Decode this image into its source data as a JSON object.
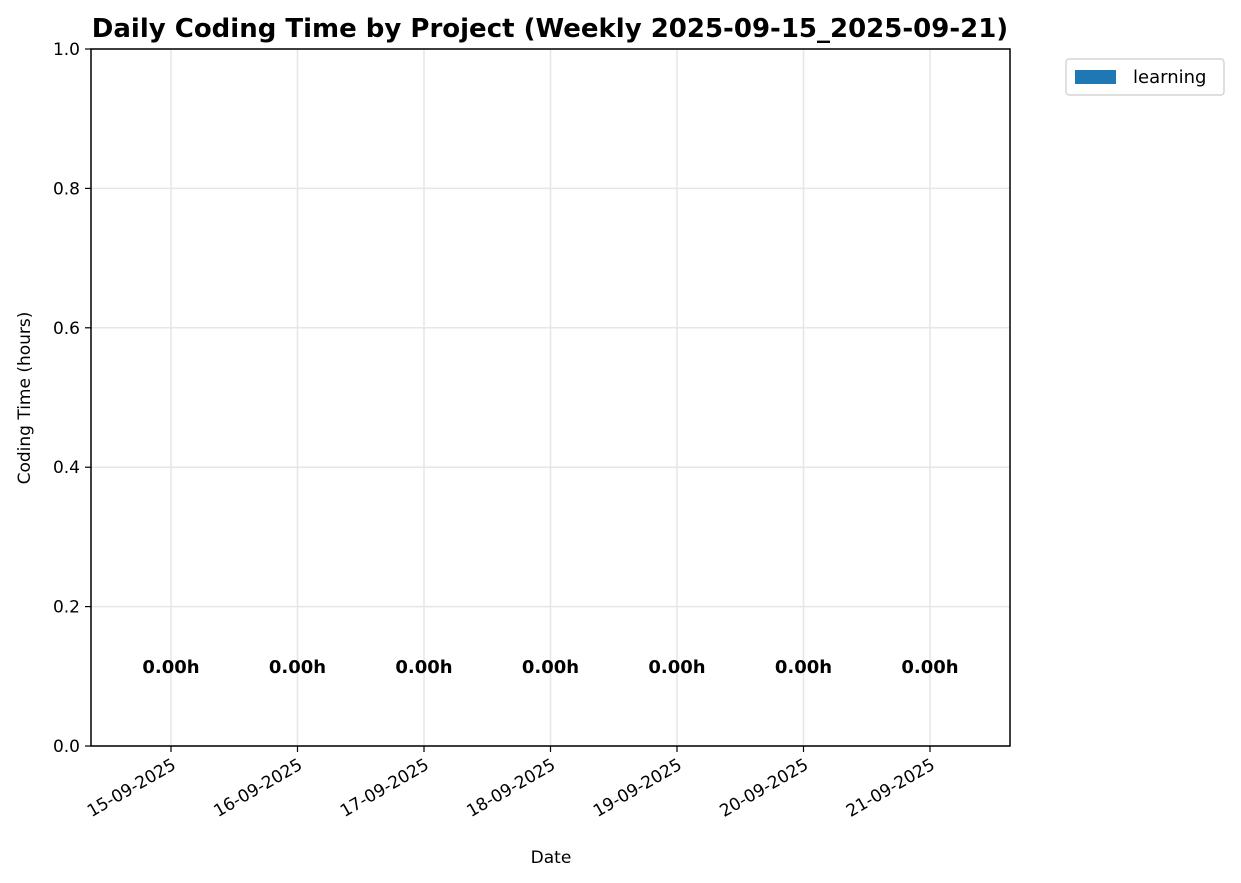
{
  "chart_data": {
    "type": "bar",
    "title": "Daily Coding Time by Project (Weekly 2025-09-15_2025-09-21)",
    "xlabel": "Date",
    "ylabel": "Coding Time (hours)",
    "categories": [
      "15-09-2025",
      "16-09-2025",
      "17-09-2025",
      "18-09-2025",
      "19-09-2025",
      "20-09-2025",
      "21-09-2025"
    ],
    "series": [
      {
        "name": "learning",
        "color": "#1f77b4",
        "values": [
          0,
          0,
          0,
          0,
          0,
          0,
          0
        ]
      }
    ],
    "data_labels": [
      "0.00h",
      "0.00h",
      "0.00h",
      "0.00h",
      "0.00h",
      "0.00h",
      "0.00h"
    ],
    "ylim": [
      0,
      1.0
    ],
    "yticks": [
      0.0,
      0.2,
      0.4,
      0.6,
      0.8,
      1.0
    ],
    "ytick_labels": [
      "0.0",
      "0.2",
      "0.4",
      "0.6",
      "0.8",
      "1.0"
    ],
    "data_label_y": 0.115,
    "grid": true,
    "legend_position": "outside upper right"
  }
}
